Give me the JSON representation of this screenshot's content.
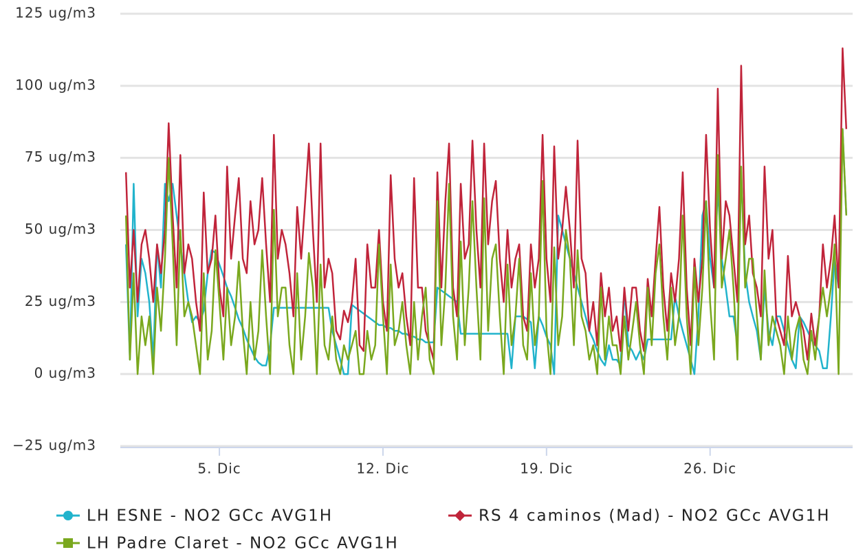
{
  "chart_data": {
    "type": "line",
    "x": [
      1,
      1.17,
      1.33,
      1.5,
      1.67,
      1.83,
      2,
      2.17,
      2.33,
      2.5,
      2.67,
      2.83,
      3,
      3.17,
      3.33,
      3.5,
      3.67,
      3.83,
      4,
      4.17,
      4.33,
      4.5,
      4.67,
      4.83,
      5,
      5.17,
      5.33,
      5.5,
      5.67,
      5.83,
      6,
      6.17,
      6.33,
      6.5,
      6.67,
      6.83,
      7,
      7.17,
      7.33,
      7.5,
      7.67,
      7.83,
      8,
      8.17,
      8.33,
      8.5,
      8.67,
      8.83,
      9,
      9.17,
      9.33,
      9.5,
      9.67,
      9.83,
      10,
      10.17,
      10.33,
      10.5,
      10.67,
      10.83,
      11,
      11.17,
      11.33,
      11.5,
      11.67,
      11.83,
      12,
      12.17,
      12.33,
      12.5,
      12.67,
      12.83,
      13,
      13.17,
      13.33,
      13.5,
      13.67,
      13.83,
      14,
      14.17,
      14.33,
      14.5,
      14.67,
      14.83,
      15,
      15.17,
      15.33,
      15.5,
      15.67,
      15.83,
      16,
      16.17,
      16.33,
      16.5,
      16.67,
      16.83,
      17,
      17.17,
      17.33,
      17.5,
      17.67,
      17.83,
      18,
      18.17,
      18.33,
      18.5,
      18.67,
      18.83,
      19,
      19.17,
      19.33,
      19.5,
      19.67,
      19.83,
      20,
      20.17,
      20.33,
      20.5,
      20.67,
      20.83,
      21,
      21.17,
      21.33,
      21.5,
      21.67,
      21.83,
      22,
      22.17,
      22.33,
      22.5,
      22.67,
      22.83,
      23,
      23.17,
      23.33,
      23.5,
      23.67,
      23.83,
      24,
      24.17,
      24.33,
      24.5,
      24.67,
      24.83,
      25,
      25.17,
      25.33,
      25.5,
      25.67,
      25.83,
      26,
      26.17,
      26.33,
      26.5,
      26.67,
      26.83,
      27,
      27.17,
      27.33,
      27.5,
      27.67,
      27.83,
      28,
      28.17,
      28.33,
      28.5,
      28.67,
      28.83,
      29,
      29.17,
      29.33,
      29.5,
      29.67,
      29.83,
      30,
      30.17,
      30.33,
      30.5,
      30.67,
      30.83,
      31,
      31.17,
      31.33,
      31.5,
      31.67,
      31.83
    ],
    "series": [
      {
        "name": "LH ESNE - NO2 GCc AVG1H",
        "color": "#21b3cc",
        "marker": "circle",
        "values": [
          45,
          5,
          66,
          20,
          40,
          35,
          25,
          5,
          45,
          30,
          66,
          60,
          66,
          55,
          45,
          35,
          25,
          18,
          20,
          18,
          22,
          35,
          43,
          42,
          38,
          34,
          30,
          27,
          23,
          19,
          16,
          12,
          9,
          6,
          4,
          3,
          3,
          10,
          23,
          23,
          23,
          23,
          23,
          23,
          23,
          23,
          23,
          23,
          23,
          23,
          23,
          23,
          23,
          15,
          10,
          5,
          0,
          0,
          24,
          23,
          22,
          21,
          20,
          19,
          18,
          17,
          17,
          16,
          16,
          15,
          15,
          14,
          14,
          13,
          13,
          12,
          12,
          11,
          11,
          11,
          30,
          29,
          28,
          27,
          26,
          25,
          14,
          14,
          14,
          14,
          14,
          14,
          14,
          14,
          14,
          14,
          14,
          14,
          14,
          2,
          20,
          20,
          20,
          19,
          18,
          2,
          20,
          17,
          13,
          10,
          0,
          55,
          50,
          45,
          40,
          35,
          30,
          25,
          20,
          15,
          12,
          8,
          5,
          3,
          10,
          5,
          5,
          3,
          29,
          10,
          8,
          5,
          8,
          5,
          12,
          12,
          12,
          12,
          12,
          12,
          12,
          27,
          20,
          15,
          10,
          5,
          0,
          20,
          55,
          60,
          40,
          30,
          65,
          40,
          30,
          20,
          20,
          10,
          70,
          35,
          25,
          20,
          15,
          5,
          30,
          15,
          10,
          20,
          20,
          15,
          10,
          5,
          2,
          20,
          18,
          15,
          12,
          10,
          8,
          2,
          2,
          20,
          40,
          30,
          85,
          55
        ]
      },
      {
        "name": "RS 4 caminos (Mad) - NO2 GCc AVG1H",
        "color": "#c0243a",
        "marker": "diamond",
        "values": [
          70,
          30,
          50,
          25,
          45,
          50,
          40,
          25,
          45,
          35,
          50,
          87,
          55,
          30,
          76,
          35,
          45,
          40,
          25,
          15,
          63,
          35,
          40,
          55,
          30,
          20,
          72,
          40,
          55,
          68,
          40,
          35,
          60,
          45,
          50,
          68,
          45,
          25,
          83,
          40,
          50,
          45,
          35,
          20,
          58,
          40,
          60,
          80,
          50,
          25,
          80,
          30,
          40,
          35,
          15,
          12,
          22,
          18,
          25,
          40,
          10,
          8,
          45,
          30,
          30,
          50,
          25,
          15,
          69,
          40,
          30,
          35,
          20,
          10,
          68,
          30,
          30,
          15,
          10,
          5,
          70,
          30,
          60,
          80,
          30,
          20,
          66,
          40,
          45,
          81,
          50,
          30,
          80,
          45,
          60,
          67,
          40,
          25,
          50,
          30,
          40,
          45,
          20,
          15,
          45,
          30,
          40,
          83,
          40,
          25,
          79,
          40,
          50,
          65,
          50,
          30,
          81,
          40,
          35,
          15,
          25,
          10,
          35,
          20,
          30,
          15,
          20,
          8,
          30,
          15,
          30,
          30,
          15,
          8,
          33,
          20,
          40,
          58,
          30,
          15,
          35,
          25,
          40,
          70,
          30,
          10,
          40,
          25,
          40,
          83,
          50,
          30,
          99,
          40,
          60,
          55,
          40,
          25,
          107,
          45,
          55,
          35,
          30,
          20,
          72,
          40,
          50,
          20,
          15,
          10,
          41,
          20,
          25,
          20,
          15,
          5,
          21,
          10,
          20,
          45,
          30,
          40,
          55,
          30,
          113,
          85
        ]
      },
      {
        "name": "LH Padre Claret - NO2 GCc AVG1H",
        "color": "#7aa81e",
        "marker": "square",
        "values": [
          55,
          5,
          35,
          0,
          20,
          10,
          20,
          0,
          30,
          15,
          40,
          75,
          45,
          10,
          50,
          20,
          25,
          20,
          10,
          0,
          35,
          5,
          15,
          43,
          25,
          5,
          30,
          10,
          20,
          39,
          15,
          0,
          25,
          5,
          15,
          43,
          20,
          0,
          57,
          20,
          30,
          30,
          10,
          0,
          35,
          5,
          20,
          42,
          30,
          0,
          38,
          10,
          5,
          20,
          5,
          0,
          10,
          5,
          10,
          15,
          0,
          0,
          15,
          5,
          10,
          45,
          20,
          0,
          38,
          10,
          15,
          25,
          10,
          0,
          25,
          5,
          20,
          30,
          5,
          0,
          60,
          10,
          30,
          66,
          20,
          5,
          46,
          10,
          30,
          60,
          30,
          5,
          61,
          15,
          40,
          45,
          20,
          0,
          38,
          10,
          20,
          40,
          10,
          5,
          35,
          10,
          20,
          67,
          15,
          0,
          44,
          10,
          20,
          50,
          40,
          10,
          43,
          20,
          15,
          5,
          10,
          0,
          30,
          5,
          20,
          10,
          10,
          0,
          20,
          5,
          15,
          25,
          10,
          0,
          30,
          10,
          35,
          45,
          20,
          5,
          30,
          10,
          20,
          55,
          20,
          0,
          37,
          10,
          30,
          60,
          25,
          5,
          76,
          30,
          40,
          50,
          30,
          5,
          72,
          30,
          40,
          40,
          20,
          5,
          36,
          10,
          20,
          15,
          10,
          0,
          20,
          5,
          15,
          20,
          5,
          0,
          15,
          5,
          20,
          30,
          20,
          30,
          45,
          0,
          85,
          55
        ]
      }
    ],
    "xlim": [
      0.76,
      32.1
    ],
    "xticks": [
      {
        "value": 5,
        "label": "5. Dic"
      },
      {
        "value": 12,
        "label": "12. Dic"
      },
      {
        "value": 19,
        "label": "19. Dic"
      },
      {
        "value": 26,
        "label": "26. Dic"
      }
    ],
    "ylim": [
      -25,
      125
    ],
    "yticks": [
      {
        "value": -25,
        "label": "−25 ug/m3"
      },
      {
        "value": 0,
        "label": "0 ug/m3"
      },
      {
        "value": 25,
        "label": "25 ug/m3"
      },
      {
        "value": 50,
        "label": "50 ug/m3"
      },
      {
        "value": 75,
        "label": "75 ug/m3"
      },
      {
        "value": 100,
        "label": "100 ug/m3"
      },
      {
        "value": 125,
        "label": "125 ug/m3"
      }
    ],
    "grid": true
  }
}
